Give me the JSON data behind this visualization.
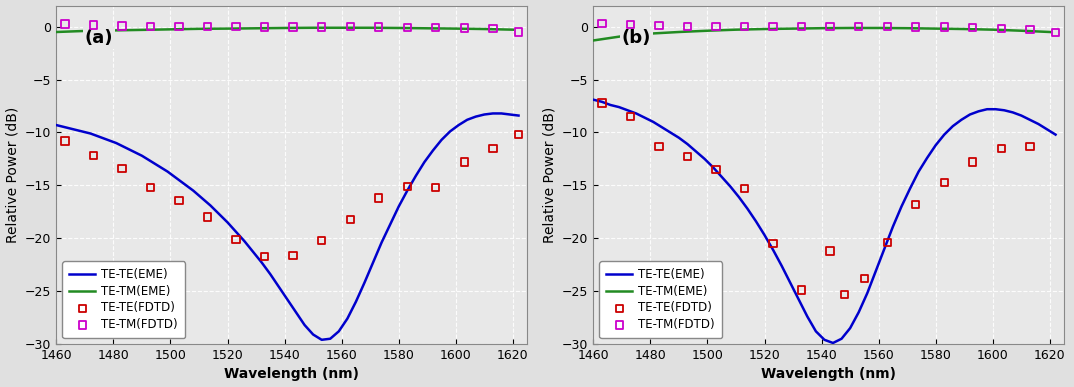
{
  "wavelength_range": [
    1460,
    1625
  ],
  "ylim": [
    -30,
    2
  ],
  "yticks": [
    0,
    -5,
    -10,
    -15,
    -20,
    -25,
    -30
  ],
  "xticks": [
    1460,
    1480,
    1500,
    1520,
    1540,
    1560,
    1580,
    1600,
    1620
  ],
  "xlabel": "Wavelength (nm)",
  "ylabel": "Relative Power (dB)",
  "panel_a_label": "(a)",
  "panel_b_label": "(b)",
  "eme_te_color": "#0000cc",
  "eme_tm_color": "#228B22",
  "fdtd_te_color": "#cc0000",
  "fdtd_tm_color": "#cc00cc",
  "panel_a": {
    "eme_te_x": [
      1460,
      1463,
      1466,
      1469,
      1472,
      1475,
      1478,
      1481,
      1484,
      1487,
      1490,
      1493,
      1496,
      1499,
      1502,
      1505,
      1508,
      1511,
      1514,
      1517,
      1520,
      1523,
      1526,
      1529,
      1532,
      1535,
      1538,
      1541,
      1544,
      1547,
      1550,
      1553,
      1556,
      1559,
      1562,
      1565,
      1568,
      1571,
      1574,
      1577,
      1580,
      1583,
      1586,
      1589,
      1592,
      1595,
      1598,
      1601,
      1604,
      1607,
      1610,
      1613,
      1616,
      1619,
      1622
    ],
    "eme_te_y": [
      -9.3,
      -9.5,
      -9.7,
      -9.9,
      -10.1,
      -10.4,
      -10.7,
      -11.0,
      -11.4,
      -11.8,
      -12.2,
      -12.7,
      -13.2,
      -13.7,
      -14.3,
      -14.9,
      -15.5,
      -16.2,
      -16.9,
      -17.7,
      -18.5,
      -19.4,
      -20.3,
      -21.3,
      -22.3,
      -23.4,
      -24.6,
      -25.8,
      -27.0,
      -28.2,
      -29.1,
      -29.6,
      -29.5,
      -28.8,
      -27.6,
      -26.0,
      -24.2,
      -22.3,
      -20.4,
      -18.7,
      -17.0,
      -15.5,
      -14.1,
      -12.8,
      -11.7,
      -10.7,
      -9.9,
      -9.3,
      -8.8,
      -8.5,
      -8.3,
      -8.2,
      -8.2,
      -8.3,
      -8.4
    ],
    "eme_tm_x": [
      1460,
      1470,
      1480,
      1490,
      1500,
      1510,
      1520,
      1530,
      1540,
      1550,
      1560,
      1570,
      1580,
      1590,
      1600,
      1610,
      1620
    ],
    "eme_tm_y": [
      -0.5,
      -0.4,
      -0.35,
      -0.3,
      -0.25,
      -0.2,
      -0.18,
      -0.15,
      -0.12,
      -0.1,
      -0.1,
      -0.1,
      -0.12,
      -0.15,
      -0.18,
      -0.22,
      -0.28
    ],
    "fdtd_te_x": [
      1463,
      1473,
      1483,
      1493,
      1503,
      1513,
      1523,
      1533,
      1543,
      1553,
      1563,
      1573,
      1583,
      1593,
      1603,
      1613,
      1622
    ],
    "fdtd_te_y": [
      -10.8,
      -12.2,
      -13.4,
      -15.2,
      -16.4,
      -18.0,
      -20.1,
      -21.7,
      -21.6,
      -20.2,
      -18.2,
      -16.2,
      -15.1,
      -15.2,
      -12.8,
      -11.5,
      -10.2
    ],
    "fdtd_tm_x": [
      1463,
      1473,
      1483,
      1493,
      1503,
      1513,
      1523,
      1533,
      1543,
      1553,
      1563,
      1573,
      1583,
      1593,
      1603,
      1613,
      1622
    ],
    "fdtd_tm_y": [
      0.25,
      0.15,
      0.08,
      0.05,
      0.02,
      0.01,
      0.0,
      -0.02,
      -0.03,
      -0.02,
      -0.01,
      -0.03,
      -0.05,
      -0.08,
      -0.12,
      -0.18,
      -0.5
    ]
  },
  "panel_b": {
    "eme_te_x": [
      1460,
      1463,
      1466,
      1469,
      1472,
      1475,
      1478,
      1481,
      1484,
      1487,
      1490,
      1493,
      1496,
      1499,
      1502,
      1505,
      1508,
      1511,
      1514,
      1517,
      1520,
      1523,
      1526,
      1529,
      1532,
      1535,
      1538,
      1541,
      1544,
      1547,
      1550,
      1553,
      1556,
      1559,
      1562,
      1565,
      1568,
      1571,
      1574,
      1577,
      1580,
      1583,
      1586,
      1589,
      1592,
      1595,
      1598,
      1601,
      1604,
      1607,
      1610,
      1613,
      1616,
      1619,
      1622
    ],
    "eme_te_y": [
      -6.9,
      -7.1,
      -7.4,
      -7.6,
      -7.9,
      -8.2,
      -8.6,
      -9.0,
      -9.5,
      -10.0,
      -10.5,
      -11.1,
      -11.8,
      -12.5,
      -13.3,
      -14.2,
      -15.1,
      -16.1,
      -17.2,
      -18.4,
      -19.7,
      -21.1,
      -22.6,
      -24.2,
      -25.8,
      -27.4,
      -28.8,
      -29.6,
      -29.9,
      -29.5,
      -28.5,
      -27.0,
      -25.2,
      -23.1,
      -21.0,
      -18.9,
      -17.0,
      -15.3,
      -13.7,
      -12.4,
      -11.2,
      -10.2,
      -9.4,
      -8.8,
      -8.3,
      -8.0,
      -7.8,
      -7.8,
      -7.9,
      -8.1,
      -8.4,
      -8.8,
      -9.2,
      -9.7,
      -10.2
    ],
    "eme_tm_x": [
      1460,
      1470,
      1480,
      1490,
      1500,
      1510,
      1520,
      1530,
      1540,
      1550,
      1560,
      1570,
      1580,
      1590,
      1600,
      1610,
      1620
    ],
    "eme_tm_y": [
      -1.3,
      -0.9,
      -0.65,
      -0.5,
      -0.38,
      -0.28,
      -0.22,
      -0.18,
      -0.14,
      -0.12,
      -0.12,
      -0.14,
      -0.18,
      -0.22,
      -0.28,
      -0.38,
      -0.5
    ],
    "fdtd_te_x": [
      1463,
      1473,
      1483,
      1493,
      1503,
      1513,
      1523,
      1533,
      1543,
      1548,
      1555,
      1563,
      1573,
      1583,
      1593,
      1603,
      1613
    ],
    "fdtd_te_y": [
      -7.2,
      -8.5,
      -11.3,
      -12.3,
      -13.5,
      -15.3,
      -20.5,
      -24.9,
      -21.2,
      -25.3,
      -23.8,
      -20.4,
      -16.8,
      -14.7,
      -12.8,
      -11.5,
      -11.3
    ],
    "fdtd_tm_x": [
      1463,
      1473,
      1483,
      1493,
      1503,
      1513,
      1523,
      1533,
      1543,
      1553,
      1563,
      1573,
      1583,
      1593,
      1603,
      1613,
      1622
    ],
    "fdtd_tm_y": [
      0.3,
      0.2,
      0.1,
      0.05,
      0.02,
      0.01,
      0.0,
      0.0,
      -0.01,
      -0.01,
      0.0,
      -0.02,
      -0.04,
      -0.08,
      -0.15,
      -0.25,
      -0.55
    ]
  },
  "legend_entries": [
    "TE-TE(EME)",
    "TE-TM(EME)",
    "TE-TE(FDTD)",
    "TE-TM(FDTD)"
  ],
  "bg_color": "#e8e8e8",
  "grid_color": "#ffffff",
  "marker_size": 28,
  "line_width": 1.8
}
